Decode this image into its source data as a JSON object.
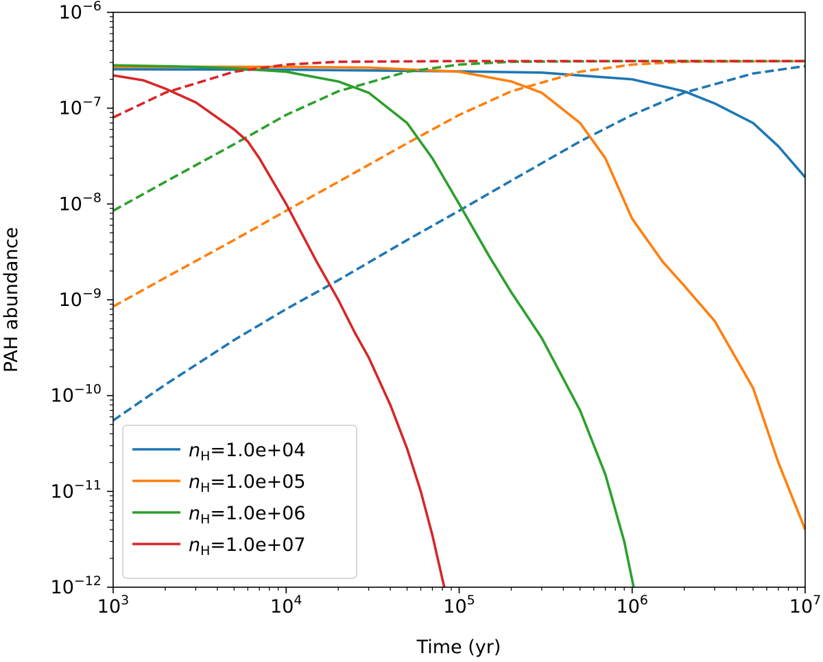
{
  "chart_data": {
    "type": "line",
    "xscale": "log",
    "yscale": "log",
    "xlabel": "Time (yr)",
    "ylabel": "PAH abundance",
    "xlim": [
      1000,
      10000000
    ],
    "ylim": [
      1e-12,
      1e-06
    ],
    "x_ticks": [
      {
        "base": "10",
        "exp": "3"
      },
      {
        "base": "10",
        "exp": "4"
      },
      {
        "base": "10",
        "exp": "5"
      },
      {
        "base": "10",
        "exp": "6"
      },
      {
        "base": "10",
        "exp": "7"
      }
    ],
    "y_ticks": [
      {
        "base": "10",
        "exp": "−12"
      },
      {
        "base": "10",
        "exp": "−11"
      },
      {
        "base": "10",
        "exp": "−10"
      },
      {
        "base": "10",
        "exp": "−9"
      },
      {
        "base": "10",
        "exp": "−8"
      },
      {
        "base": "10",
        "exp": "−7"
      },
      {
        "base": "10",
        "exp": "−6"
      }
    ],
    "legend_position": "lower-left",
    "series": [
      {
        "name": "nH=1.0e+04",
        "label_var": "n",
        "label_sub": "H",
        "label_rest": "=1.0e+04",
        "color": "#1f77b4",
        "solid": [
          [
            1000,
            2.55e-07
          ],
          [
            10000,
            2.52e-07
          ],
          [
            100000,
            2.42e-07
          ],
          [
            300000,
            2.35e-07
          ],
          [
            1000000,
            2e-07
          ],
          [
            2000000,
            1.5e-07
          ],
          [
            3000000,
            1.12e-07
          ],
          [
            5000000,
            7e-08
          ],
          [
            7000000,
            4e-08
          ],
          [
            10000000,
            1.9e-08
          ]
        ],
        "dashed": [
          [
            1000,
            5.5e-11
          ],
          [
            2000,
            1.3e-10
          ],
          [
            5000,
            3.8e-10
          ],
          [
            10000,
            8e-10
          ],
          [
            20000,
            1.6e-09
          ],
          [
            50000,
            4.2e-09
          ],
          [
            100000,
            8.5e-09
          ],
          [
            200000,
            1.75e-08
          ],
          [
            500000,
            4.5e-08
          ],
          [
            1000000,
            8.5e-08
          ],
          [
            2000000,
            1.45e-07
          ],
          [
            5000000,
            2.3e-07
          ],
          [
            10000000,
            2.75e-07
          ]
        ]
      },
      {
        "name": "nH=1.0e+05",
        "label_var": "n",
        "label_sub": "H",
        "label_rest": "=1.0e+05",
        "color": "#ff7f0e",
        "solid": [
          [
            1000,
            2.7e-07
          ],
          [
            10000,
            2.7e-07
          ],
          [
            30000,
            2.65e-07
          ],
          [
            100000,
            2.4e-07
          ],
          [
            200000,
            1.9e-07
          ],
          [
            300000,
            1.45e-07
          ],
          [
            500000,
            7e-08
          ],
          [
            700000,
            3e-08
          ],
          [
            1000000,
            7e-09
          ],
          [
            1500000,
            2.5e-09
          ],
          [
            2000000,
            1.4e-09
          ],
          [
            3000000,
            6e-10
          ],
          [
            5000000,
            1.2e-10
          ],
          [
            7000000,
            2e-11
          ],
          [
            10000000,
            4e-12
          ]
        ],
        "dashed": [
          [
            1000,
            8.5e-10
          ],
          [
            2000,
            1.7e-09
          ],
          [
            5000,
            4.2e-09
          ],
          [
            10000,
            8.5e-09
          ],
          [
            20000,
            1.7e-08
          ],
          [
            50000,
            4.3e-08
          ],
          [
            100000,
            8.5e-08
          ],
          [
            200000,
            1.5e-07
          ],
          [
            500000,
            2.4e-07
          ],
          [
            1000000,
            2.85e-07
          ],
          [
            2000000,
            3.05e-07
          ],
          [
            10000000,
            3.1e-07
          ]
        ]
      },
      {
        "name": "nH=1.0e+06",
        "label_var": "n",
        "label_sub": "H",
        "label_rest": "=1.0e+06",
        "color": "#2ca02c",
        "solid": [
          [
            1000,
            2.8e-07
          ],
          [
            3000,
            2.7e-07
          ],
          [
            5000,
            2.6e-07
          ],
          [
            10000,
            2.4e-07
          ],
          [
            20000,
            1.9e-07
          ],
          [
            30000,
            1.45e-07
          ],
          [
            50000,
            7e-08
          ],
          [
            70000,
            3e-08
          ],
          [
            100000,
            1e-08
          ],
          [
            150000,
            2.8e-09
          ],
          [
            200000,
            1.2e-09
          ],
          [
            300000,
            4e-10
          ],
          [
            500000,
            7e-11
          ],
          [
            700000,
            1.5e-11
          ],
          [
            900000,
            3e-12
          ],
          [
            1020000,
            1e-12
          ]
        ],
        "dashed": [
          [
            1000,
            8.5e-09
          ],
          [
            2000,
            1.7e-08
          ],
          [
            5000,
            4.2e-08
          ],
          [
            10000,
            8.5e-08
          ],
          [
            20000,
            1.5e-07
          ],
          [
            50000,
            2.4e-07
          ],
          [
            100000,
            2.85e-07
          ],
          [
            200000,
            3.05e-07
          ],
          [
            1000000,
            3.1e-07
          ],
          [
            10000000,
            3.1e-07
          ]
        ]
      },
      {
        "name": "nH=1.0e+07",
        "label_var": "n",
        "label_sub": "H",
        "label_rest": "=1.0e+07",
        "color": "#d62728",
        "solid": [
          [
            1000,
            2.2e-07
          ],
          [
            1500,
            1.95e-07
          ],
          [
            2000,
            1.6e-07
          ],
          [
            3000,
            1.15e-07
          ],
          [
            5000,
            6e-08
          ],
          [
            6000,
            4.5e-08
          ],
          [
            7000,
            3e-08
          ],
          [
            10000,
            1e-08
          ],
          [
            15000,
            2.5e-09
          ],
          [
            20000,
            1e-09
          ],
          [
            25000,
            4.5e-10
          ],
          [
            30000,
            2.5e-10
          ],
          [
            40000,
            8e-11
          ],
          [
            50000,
            2.8e-11
          ],
          [
            60000,
            1e-11
          ],
          [
            70000,
            3.5e-12
          ],
          [
            82000,
            1e-12
          ]
        ],
        "dashed": [
          [
            1000,
            8e-08
          ],
          [
            2000,
            1.45e-07
          ],
          [
            5000,
            2.4e-07
          ],
          [
            10000,
            2.85e-07
          ],
          [
            20000,
            3.05e-07
          ],
          [
            100000,
            3.1e-07
          ],
          [
            10000000,
            3.1e-07
          ]
        ]
      }
    ]
  }
}
